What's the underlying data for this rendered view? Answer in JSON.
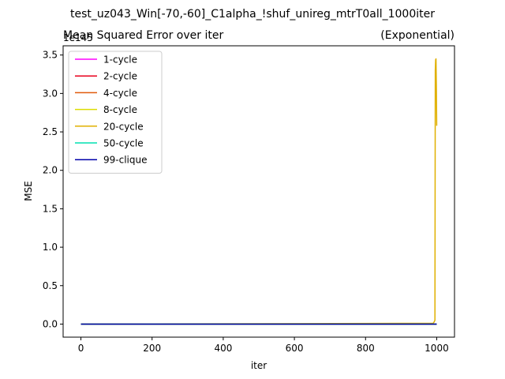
{
  "window": {
    "suptitle": "test_uz043_Win[-70,-60]_C1alpha_!shuf_unireg_mtrT0all_1000iter"
  },
  "chart_data": {
    "type": "line",
    "title": "Mean Squared Error over iter",
    "title_right": "(Exponential)",
    "xlabel": "iter",
    "ylabel": "MSE",
    "y_offset_text": "1e145",
    "xlim": [
      -50,
      1050
    ],
    "ylim": [
      -0.17,
      3.62
    ],
    "x_ticks": [
      0,
      200,
      400,
      600,
      800,
      1000
    ],
    "x_tick_labels": [
      "0",
      "200",
      "400",
      "600",
      "800",
      "1000"
    ],
    "y_ticks": [
      0,
      0.5,
      1.0,
      1.5,
      2.0,
      2.5,
      3.0,
      3.5
    ],
    "y_tick_labels": [
      "0.0",
      "0.5",
      "1.0",
      "1.5",
      "2.0",
      "2.5",
      "3.0",
      "3.5"
    ],
    "legend_position": "upper-left",
    "series": [
      {
        "name": "1-cycle",
        "color": "#ff00ff",
        "x": [
          0,
          1000
        ],
        "y": [
          0,
          0
        ]
      },
      {
        "name": "2-cycle",
        "color": "#e8001c",
        "x": [
          0,
          1000
        ],
        "y": [
          0,
          0
        ]
      },
      {
        "name": "4-cycle",
        "color": "#e05a0a",
        "x": [
          0,
          1000
        ],
        "y": [
          0,
          0
        ]
      },
      {
        "name": "8-cycle",
        "color": "#dddd00",
        "x": [
          0,
          1000
        ],
        "y": [
          0,
          0
        ]
      },
      {
        "name": "20-cycle",
        "color": "#e0b000",
        "x": [
          0,
          990,
          993,
          995,
          996,
          997,
          998,
          999,
          1000
        ],
        "y": [
          0,
          0.01,
          0.03,
          0.05,
          3.3,
          3.44,
          3.45,
          3.1,
          2.58
        ]
      },
      {
        "name": "50-cycle",
        "color": "#00e0b0",
        "x": [
          0,
          1000
        ],
        "y": [
          0,
          0
        ]
      },
      {
        "name": "99-clique",
        "color": "#0000aa",
        "x": [
          0,
          1000
        ],
        "y": [
          0,
          0
        ]
      }
    ]
  }
}
